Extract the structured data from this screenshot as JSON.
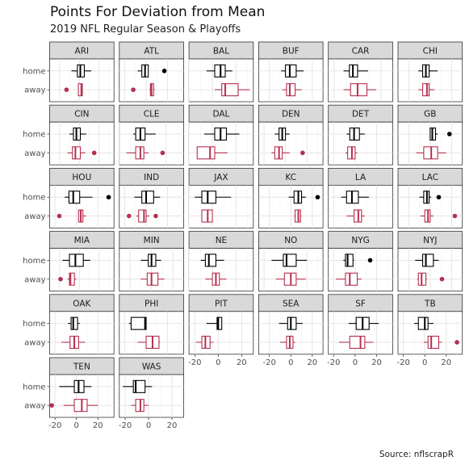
{
  "chart_data": {
    "type": "boxplot",
    "title": "Points For Deviation from Mean",
    "subtitle": "2019 NFL Regular Season & Playoffs",
    "caption": "Source: nflscrapR",
    "facet_layout": "6 columns x 6 rows, free x scales",
    "rows": [
      "home",
      "away"
    ],
    "colors": {
      "home": "#000000",
      "away": "#b5304f"
    },
    "grid": true,
    "teams": [
      {
        "team": "ARI",
        "xlim": [
          -30,
          35
        ],
        "xticks": [
          -20,
          0,
          20
        ],
        "home": {
          "min": -8,
          "q1": -2,
          "median": 1,
          "q3": 5,
          "max": 12,
          "outliers": []
        },
        "away": {
          "min": -1,
          "q1": -1,
          "median": 2,
          "q3": 3,
          "max": 3,
          "outliers": [
            -13
          ]
        }
      },
      {
        "team": "ATL",
        "xlim": [
          -25,
          35
        ],
        "xticks": [
          -20,
          0,
          20
        ],
        "home": {
          "min": -8,
          "q1": -4,
          "median": -1,
          "q3": 2,
          "max": 2,
          "outliers": [
            17
          ]
        },
        "away": {
          "min": 3,
          "q1": 4,
          "median": 5,
          "q3": 7,
          "max": 8,
          "outliers": [
            -12
          ]
        }
      },
      {
        "team": "BAL",
        "xlim": [
          -20,
          35
        ],
        "xticks": [
          -20,
          0,
          20
        ],
        "home": {
          "min": -5,
          "q1": 2,
          "median": 7,
          "q3": 11,
          "max": 17,
          "outliers": []
        },
        "away": {
          "min": 2,
          "q1": 8,
          "median": 11,
          "q3": 22,
          "max": 32,
          "outliers": []
        }
      },
      {
        "team": "BUF",
        "xlim": [
          -30,
          30
        ],
        "xticks": [
          -20,
          0,
          20
        ],
        "home": {
          "min": -9,
          "q1": -5,
          "median": -1,
          "q3": 5,
          "max": 12,
          "outliers": []
        },
        "away": {
          "min": -8,
          "q1": -4,
          "median": -1,
          "q3": 4,
          "max": 10,
          "outliers": []
        }
      },
      {
        "team": "CAR",
        "xlim": [
          -25,
          30
        ],
        "xticks": [
          -20,
          0,
          20
        ],
        "home": {
          "min": -12,
          "q1": -7,
          "median": -4,
          "q3": 0,
          "max": 9,
          "outliers": []
        },
        "away": {
          "min": -12,
          "q1": -6,
          "median": 0,
          "q3": 8,
          "max": 16,
          "outliers": []
        }
      },
      {
        "team": "CHI",
        "xlim": [
          -30,
          30
        ],
        "xticks": [
          -20,
          0,
          20
        ],
        "home": {
          "min": -11,
          "q1": -7,
          "median": -4,
          "q3": -1,
          "max": 7,
          "outliers": []
        },
        "away": {
          "min": -11,
          "q1": -7,
          "median": -3,
          "q3": -1,
          "max": 4,
          "outliers": []
        }
      },
      {
        "team": "CIN",
        "xlim": [
          -30,
          35
        ],
        "xticks": [
          -20,
          0,
          20
        ],
        "home": {
          "min": -10,
          "q1": -6,
          "median": -3,
          "q3": 1,
          "max": 7,
          "outliers": []
        },
        "away": {
          "min": -12,
          "q1": -7,
          "median": -4,
          "q3": 1,
          "max": 6,
          "outliers": [
            15
          ]
        }
      },
      {
        "team": "CLE",
        "xlim": [
          -20,
          35
        ],
        "xticks": [
          -20,
          0,
          20
        ],
        "home": {
          "min": -8,
          "q1": -6,
          "median": -2,
          "q3": 2,
          "max": 11,
          "outliers": []
        },
        "away": {
          "min": -14,
          "q1": -6,
          "median": -2,
          "q3": 1,
          "max": 5,
          "outliers": [
            17
          ]
        }
      },
      {
        "team": "DAL",
        "xlim": [
          -20,
          35
        ],
        "xticks": [
          -20,
          0,
          20
        ],
        "home": {
          "min": -7,
          "q1": 2,
          "median": 7,
          "q3": 12,
          "max": 23,
          "outliers": []
        },
        "away": {
          "min": -13,
          "q1": -13,
          "median": -2,
          "q3": 2,
          "max": 13,
          "outliers": []
        }
      },
      {
        "team": "DEN",
        "xlim": [
          -25,
          35
        ],
        "xticks": [
          -20,
          0,
          20
        ],
        "home": {
          "min": -10,
          "q1": -6,
          "median": -3,
          "q3": 0,
          "max": 4,
          "outliers": []
        },
        "away": {
          "min": -13,
          "q1": -10,
          "median": -6,
          "q3": -3,
          "max": 4,
          "outliers": [
            16
          ]
        }
      },
      {
        "team": "DET",
        "xlim": [
          -25,
          35
        ],
        "xticks": [
          -20,
          0,
          20
        ],
        "home": {
          "min": -8,
          "q1": -5,
          "median": -1,
          "q3": 4,
          "max": 9,
          "outliers": []
        },
        "away": {
          "min": -9,
          "q1": -7,
          "median": -3,
          "q3": 0,
          "max": 2,
          "outliers": []
        }
      },
      {
        "team": "GB",
        "xlim": [
          -30,
          30
        ],
        "xticks": [
          -20,
          0,
          20
        ],
        "home": {
          "min": 0,
          "q1": 0,
          "median": 2,
          "q3": 5,
          "max": 7,
          "outliers": [
            18
          ]
        },
        "away": {
          "min": -13,
          "q1": -6,
          "median": 1,
          "q3": 7,
          "max": 15,
          "outliers": []
        }
      },
      {
        "team": "HOU",
        "xlim": [
          -25,
          35
        ],
        "xticks": [
          -20,
          0,
          20
        ],
        "home": {
          "min": -11,
          "q1": -7,
          "median": -3,
          "q3": 3,
          "max": 15,
          "outliers": [
            30
          ]
        },
        "away": {
          "min": 2,
          "q1": 2,
          "median": 4,
          "q3": 6,
          "max": 9,
          "outliers": [
            -16
          ]
        }
      },
      {
        "team": "IND",
        "xlim": [
          -25,
          35
        ],
        "xticks": [
          -20,
          0,
          20
        ],
        "home": {
          "min": -11,
          "q1": -4,
          "median": 0,
          "q3": 7,
          "max": 13,
          "outliers": []
        },
        "away": {
          "min": -9,
          "q1": -7,
          "median": -2,
          "q3": 0,
          "max": 3,
          "outliers": [
            -16,
            9
          ]
        }
      },
      {
        "team": "JAX",
        "xlim": [
          -20,
          35
        ],
        "xticks": [
          -20,
          0,
          20
        ],
        "home": {
          "min": -15,
          "q1": -9,
          "median": -4,
          "q3": 3,
          "max": 16,
          "outliers": []
        },
        "away": {
          "min": -9,
          "q1": -9,
          "median": -4,
          "q3": 0,
          "max": 0,
          "outliers": []
        }
      },
      {
        "team": "KC",
        "xlim": [
          -30,
          30
        ],
        "xticks": [
          -20,
          0,
          20
        ],
        "home": {
          "min": -2,
          "q1": 3,
          "median": 7,
          "q3": 10,
          "max": 14,
          "outliers": [
            25
          ]
        },
        "away": {
          "min": 3,
          "q1": 4,
          "median": 7,
          "q3": 9,
          "max": 10,
          "outliers": []
        }
      },
      {
        "team": "LA",
        "xlim": [
          -25,
          35
        ],
        "xticks": [
          -20,
          0,
          20
        ],
        "home": {
          "min": -13,
          "q1": -8,
          "median": -3,
          "q3": 3,
          "max": 13,
          "outliers": []
        },
        "away": {
          "min": -8,
          "q1": -1,
          "median": 3,
          "q3": 6,
          "max": 9,
          "outliers": []
        }
      },
      {
        "team": "LAC",
        "xlim": [
          -30,
          30
        ],
        "xticks": [
          -20,
          0,
          20
        ],
        "home": {
          "min": -10,
          "q1": -6,
          "median": -3,
          "q3": -1,
          "max": 1,
          "outliers": [
            8
          ]
        },
        "away": {
          "min": -9,
          "q1": -5,
          "median": -2,
          "q3": 0,
          "max": 3,
          "outliers": [
            23
          ]
        }
      },
      {
        "team": "MIA",
        "xlim": [
          -30,
          35
        ],
        "xticks": [
          -20,
          0,
          20
        ],
        "home": {
          "min": -17,
          "q1": -10,
          "median": -4,
          "q3": 4,
          "max": 11,
          "outliers": []
        },
        "away": {
          "min": -12,
          "q1": -10,
          "median": -9,
          "q3": -5,
          "max": -3,
          "outliers": [
            -19
          ]
        }
      },
      {
        "team": "MIN",
        "xlim": [
          -30,
          30
        ],
        "xticks": [
          -20,
          0,
          20
        ],
        "home": {
          "min": -10,
          "q1": -3,
          "median": 0,
          "q3": 4,
          "max": 9,
          "outliers": []
        },
        "away": {
          "min": -10,
          "q1": -4,
          "median": 0,
          "q3": 6,
          "max": 12,
          "outliers": []
        }
      },
      {
        "team": "NE",
        "xlim": [
          -20,
          35
        ],
        "xticks": [
          -20,
          0,
          20
        ],
        "home": {
          "min": -10,
          "q1": -6,
          "median": -3,
          "q3": 3,
          "max": 10,
          "outliers": []
        },
        "away": {
          "min": -6,
          "q1": 0,
          "median": 3,
          "q3": 6,
          "max": 12,
          "outliers": []
        }
      },
      {
        "team": "NO",
        "xlim": [
          -25,
          35
        ],
        "xticks": [
          -20,
          0,
          20
        ],
        "home": {
          "min": -13,
          "q1": -2,
          "median": 1,
          "q3": 10,
          "max": 20,
          "outliers": []
        },
        "away": {
          "min": -9,
          "q1": -1,
          "median": 5,
          "q3": 10,
          "max": 19,
          "outliers": []
        }
      },
      {
        "team": "NYG",
        "xlim": [
          -25,
          35
        ],
        "xticks": [
          -20,
          0,
          20
        ],
        "home": {
          "min": -11,
          "q1": -9,
          "median": -7,
          "q3": -2,
          "max": -1,
          "outliers": [
            14
          ]
        },
        "away": {
          "min": -18,
          "q1": -9,
          "median": -5,
          "q3": 2,
          "max": 6,
          "outliers": []
        }
      },
      {
        "team": "NYJ",
        "xlim": [
          -30,
          30
        ],
        "xticks": [
          -20,
          0,
          20
        ],
        "home": {
          "min": -14,
          "q1": -7,
          "median": -4,
          "q3": 3,
          "max": 8,
          "outliers": []
        },
        "away": {
          "min": -12,
          "q1": -11,
          "median": -8,
          "q3": -4,
          "max": -3,
          "outliers": [
            11
          ]
        }
      },
      {
        "team": "OAK",
        "xlim": [
          -25,
          35
        ],
        "xticks": [
          -20,
          0,
          20
        ],
        "home": {
          "min": -8,
          "q1": -5,
          "median": -3,
          "q3": 1,
          "max": 3,
          "outliers": []
        },
        "away": {
          "min": -14,
          "q1": -6,
          "median": -2,
          "q3": 2,
          "max": 8,
          "outliers": []
        }
      },
      {
        "team": "PHI",
        "xlim": [
          -25,
          35
        ],
        "xticks": [
          -20,
          0,
          20
        ],
        "home": {
          "min": -16,
          "q1": -14,
          "median": -1,
          "q3": 0,
          "max": 0,
          "outliers": []
        },
        "away": {
          "min": -8,
          "q1": 0,
          "median": 6,
          "q3": 12,
          "max": 13,
          "outliers": []
        }
      },
      {
        "team": "PIT",
        "xlim": [
          -25,
          30
        ],
        "xticks": [
          -20,
          0,
          20
        ],
        "home": {
          "min": -10,
          "q1": -1,
          "median": 0,
          "q3": 3,
          "max": 3,
          "outliers": []
        },
        "away": {
          "min": -19,
          "q1": -14,
          "median": -11,
          "q3": -7,
          "max": -4,
          "outliers": []
        }
      },
      {
        "team": "SEA",
        "xlim": [
          -30,
          30
        ],
        "xticks": [
          -20,
          0,
          20
        ],
        "home": {
          "min": -11,
          "q1": -3,
          "median": 0,
          "q3": 5,
          "max": 11,
          "outliers": []
        },
        "away": {
          "min": -10,
          "q1": -4,
          "median": -1,
          "q3": 2,
          "max": 4,
          "outliers": []
        }
      },
      {
        "team": "SF",
        "xlim": [
          -25,
          35
        ],
        "xticks": [
          -20,
          0,
          20
        ],
        "home": {
          "min": -6,
          "q1": 1,
          "median": 7,
          "q3": 13,
          "max": 22,
          "outliers": []
        },
        "away": {
          "min": -15,
          "q1": -5,
          "median": 5,
          "q3": 9,
          "max": 17,
          "outliers": []
        }
      },
      {
        "team": "TB",
        "xlim": [
          -25,
          35
        ],
        "xticks": [
          -20,
          0,
          20
        ],
        "home": {
          "min": -10,
          "q1": -6,
          "median": 0,
          "q3": 3,
          "max": 8,
          "outliers": []
        },
        "away": {
          "min": -1,
          "q1": 3,
          "median": 6,
          "q3": 13,
          "max": 16,
          "outliers": [
            30
          ]
        }
      },
      {
        "team": "TEN",
        "xlim": [
          -25,
          35
        ],
        "xticks": [
          -20,
          0,
          20
        ],
        "home": {
          "min": -16,
          "q1": -2,
          "median": 2,
          "q3": 7,
          "max": 14,
          "outliers": []
        },
        "away": {
          "min": -12,
          "q1": -2,
          "median": 5,
          "q3": 10,
          "max": 20,
          "outliers": [
            -23
          ]
        }
      },
      {
        "team": "WAS",
        "xlim": [
          -25,
          30
        ],
        "xticks": [
          -20,
          0,
          20
        ],
        "home": {
          "min": -22,
          "q1": -13,
          "median": -11,
          "q3": -3,
          "max": 3,
          "outliers": []
        },
        "away": {
          "min": -15,
          "q1": -11,
          "median": -7,
          "q3": -4,
          "max": 0,
          "outliers": []
        }
      }
    ]
  }
}
